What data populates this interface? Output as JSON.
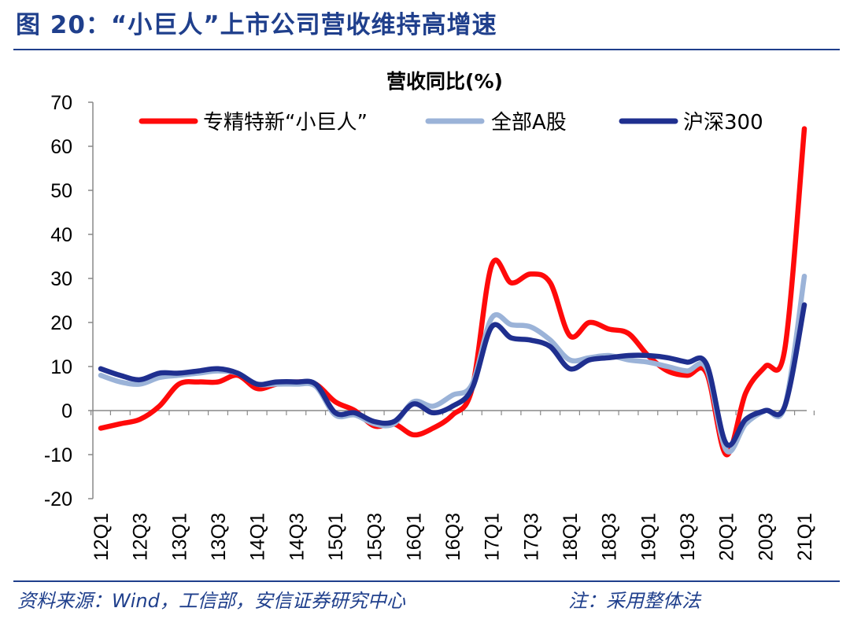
{
  "figure": {
    "title": "图 20：“小巨人”上市公司营收维持高增速",
    "source": "资料来源：Wind，工信部，安信证券研究中心",
    "note": "注：采用整体法"
  },
  "colors": {
    "accent": "#1f3f8c",
    "series": [
      "#ff0a0a",
      "#9bb3d8",
      "#1f2f8f"
    ]
  },
  "chart_data": {
    "type": "line",
    "title": "营收同比(%)",
    "xlabel": "",
    "ylabel": "",
    "ylim": [
      -20,
      70
    ],
    "yticks": [
      70,
      60,
      50,
      40,
      30,
      20,
      10,
      0,
      -10,
      -20
    ],
    "grid": false,
    "legend_position": "top",
    "categories": [
      "12Q1",
      "12Q2",
      "12Q3",
      "12Q4",
      "13Q1",
      "13Q2",
      "13Q3",
      "13Q4",
      "14Q1",
      "14Q2",
      "14Q3",
      "14Q4",
      "15Q1",
      "15Q2",
      "15Q3",
      "15Q4",
      "16Q1",
      "16Q2",
      "16Q3",
      "16Q4",
      "17Q1",
      "17Q2",
      "17Q3",
      "17Q4",
      "18Q1",
      "18Q2",
      "18Q3",
      "18Q4",
      "19Q1",
      "19Q2",
      "19Q3",
      "19Q4",
      "20Q1",
      "20Q2",
      "20Q3",
      "20Q4",
      "21Q1"
    ],
    "tick_labels": [
      "12Q1",
      "12Q3",
      "13Q1",
      "13Q3",
      "14Q1",
      "14Q3",
      "15Q1",
      "15Q3",
      "16Q1",
      "16Q3",
      "17Q1",
      "17Q3",
      "18Q1",
      "18Q3",
      "19Q1",
      "19Q3",
      "20Q1",
      "20Q3",
      "21Q1"
    ],
    "series": [
      {
        "name": "专精特新“小巨人”",
        "values": [
          -4,
          -3,
          -2,
          1,
          6,
          6.5,
          6.5,
          8,
          5,
          6,
          6.5,
          6,
          2,
          0,
          -3.5,
          -3,
          -5.5,
          -4,
          -1,
          5,
          33,
          29,
          31,
          29,
          17,
          20,
          18.5,
          17.5,
          12.5,
          9,
          8,
          8.5,
          -10,
          4,
          10,
          14,
          64
        ]
      },
      {
        "name": "全部A股",
        "values": [
          8,
          6.5,
          6,
          7.5,
          8,
          8.5,
          9,
          8.5,
          6,
          6,
          6,
          5.5,
          -1,
          -1,
          -3,
          -3,
          2,
          1,
          3.5,
          6,
          21,
          19.5,
          19,
          16,
          11.5,
          12,
          12.5,
          11.5,
          11,
          10,
          9,
          9.5,
          -9,
          -3,
          0,
          1,
          30.5
        ]
      },
      {
        "name": "沪深300",
        "values": [
          9.5,
          8,
          7,
          8.5,
          8.5,
          9,
          9.5,
          8.5,
          6,
          6.5,
          6.5,
          6,
          -0.5,
          -0.5,
          -2.5,
          -2.5,
          1.5,
          -0.5,
          1,
          5,
          19,
          16.5,
          16,
          14.5,
          9.5,
          11.5,
          12,
          12.5,
          12.5,
          12,
          11,
          10.5,
          -7.5,
          -2,
          0,
          1,
          24
        ]
      }
    ]
  }
}
